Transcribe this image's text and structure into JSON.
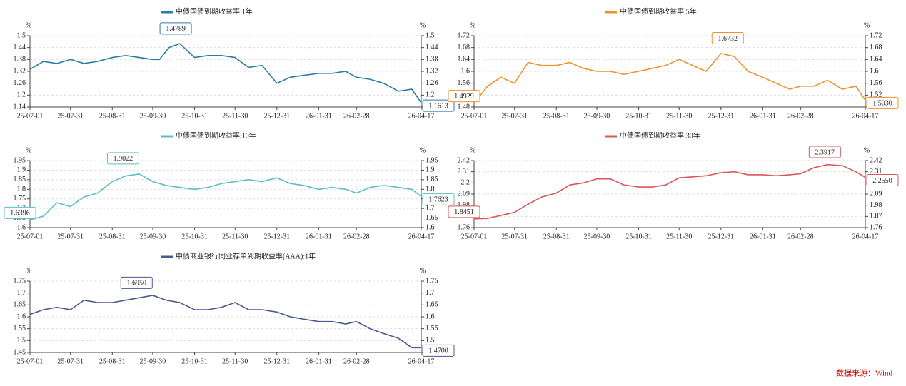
{
  "chart_data": [
    {
      "type": "line",
      "unit": "%",
      "series": [
        {
          "name": "中债国债到期收益率:1年",
          "color": "#2b7ca3",
          "values": [
            1.33,
            1.37,
            1.36,
            1.38,
            1.36,
            1.37,
            1.39,
            1.4,
            1.39,
            1.38,
            1.38,
            1.44,
            1.46,
            1.39,
            1.4,
            1.4,
            1.39,
            1.34,
            1.35,
            1.26,
            1.29,
            1.3,
            1.31,
            1.31,
            1.32,
            1.29,
            1.28,
            1.26,
            1.22,
            1.23,
            1.1613
          ]
        }
      ],
      "x": [
        "25-07-01",
        "25-07-11",
        "25-07-21",
        "25-07-31",
        "25-08-10",
        "25-08-20",
        "25-08-31",
        "25-09-10",
        "25-09-20",
        "25-09-30",
        "25-10-05",
        "25-10-12",
        "25-10-20",
        "25-10-31",
        "25-11-10",
        "25-11-20",
        "25-11-30",
        "25-12-10",
        "25-12-20",
        "25-12-31",
        "26-01-10",
        "26-01-20",
        "26-01-31",
        "26-02-10",
        "26-02-20",
        "26-02-28",
        "26-03-10",
        "26-03-20",
        "26-03-31",
        "26-04-10",
        "26-04-17"
      ],
      "xlim": [
        "25-07-01",
        "26-04-17"
      ],
      "xticks": [
        "25-07-01",
        "25-07-31",
        "25-08-31",
        "25-09-30",
        "25-10-31",
        "25-11-30",
        "25-12-31",
        "26-01-31",
        "26-02-28",
        "26-04-17"
      ],
      "ylim": [
        1.14,
        1.5
      ],
      "yticks": [
        1.14,
        1.2,
        1.26,
        1.32,
        1.38,
        1.44,
        1.5
      ],
      "grid": true,
      "annotations": [
        {
          "x": "25-10-17",
          "value": 1.4789,
          "label": "1.4789"
        },
        {
          "x": "26-04-17",
          "value": 1.1613,
          "label": "1.1613"
        }
      ]
    },
    {
      "type": "line",
      "unit": "%",
      "series": [
        {
          "name": "中债国债到期收益率:5年",
          "color": "#f0922b",
          "values": [
            1.4929,
            1.55,
            1.58,
            1.56,
            1.63,
            1.62,
            1.62,
            1.63,
            1.61,
            1.6,
            1.6,
            1.59,
            1.6,
            1.61,
            1.62,
            1.64,
            1.62,
            1.6,
            1.66,
            1.65,
            1.6,
            1.58,
            1.56,
            1.54,
            1.55,
            1.55,
            1.57,
            1.54,
            1.55,
            1.503
          ]
        }
      ],
      "x": [
        "25-07-01",
        "25-07-11",
        "25-07-21",
        "25-07-31",
        "25-08-10",
        "25-08-20",
        "25-08-31",
        "25-09-10",
        "25-09-20",
        "25-09-30",
        "25-10-10",
        "25-10-20",
        "25-10-31",
        "25-11-10",
        "25-11-20",
        "25-11-30",
        "25-12-10",
        "25-12-20",
        "25-12-31",
        "26-01-10",
        "26-01-20",
        "26-01-31",
        "26-02-10",
        "26-02-20",
        "26-02-28",
        "26-03-10",
        "26-03-20",
        "26-03-31",
        "26-04-10",
        "26-04-17"
      ],
      "xlim": [
        "25-07-01",
        "26-04-17"
      ],
      "xticks": [
        "25-07-01",
        "25-07-31",
        "25-08-31",
        "25-09-30",
        "25-10-31",
        "25-11-30",
        "25-12-31",
        "26-01-31",
        "26-02-28",
        "26-04-17"
      ],
      "ylim": [
        1.48,
        1.72
      ],
      "yticks": [
        1.48,
        1.52,
        1.56,
        1.6,
        1.64,
        1.68,
        1.72
      ],
      "grid": true,
      "annotations": [
        {
          "x": "25-07-01",
          "value": 1.4929,
          "label": "1.4929"
        },
        {
          "x": "26-01-05",
          "value": 1.6732,
          "label": "1.6732"
        },
        {
          "x": "26-04-17",
          "value": 1.503,
          "label": "1.5030"
        }
      ]
    },
    {
      "type": "line",
      "unit": "%",
      "series": [
        {
          "name": "中债国债到期收益率:10年",
          "color": "#5bbfc1",
          "values": [
            1.6396,
            1.66,
            1.73,
            1.71,
            1.76,
            1.78,
            1.84,
            1.87,
            1.88,
            1.84,
            1.82,
            1.81,
            1.8,
            1.81,
            1.83,
            1.84,
            1.85,
            1.84,
            1.86,
            1.83,
            1.82,
            1.8,
            1.81,
            1.8,
            1.78,
            1.81,
            1.82,
            1.81,
            1.8,
            1.7623
          ]
        }
      ],
      "x": [
        "25-07-01",
        "25-07-11",
        "25-07-21",
        "25-07-31",
        "25-08-10",
        "25-08-20",
        "25-08-31",
        "25-09-10",
        "25-09-20",
        "25-09-30",
        "25-10-10",
        "25-10-20",
        "25-10-31",
        "25-11-10",
        "25-11-20",
        "25-11-30",
        "25-12-10",
        "25-12-20",
        "25-12-31",
        "26-01-10",
        "26-01-20",
        "26-01-31",
        "26-02-10",
        "26-02-20",
        "26-02-28",
        "26-03-10",
        "26-03-20",
        "26-03-31",
        "26-04-10",
        "26-04-17"
      ],
      "xlim": [
        "25-07-01",
        "26-04-17"
      ],
      "xticks": [
        "25-07-01",
        "25-07-31",
        "25-08-31",
        "25-09-30",
        "25-10-31",
        "25-11-30",
        "25-12-31",
        "26-01-31",
        "26-02-28",
        "26-04-17"
      ],
      "ylim": [
        1.6,
        1.95
      ],
      "yticks": [
        1.6,
        1.65,
        1.7,
        1.75,
        1.8,
        1.85,
        1.9,
        1.95
      ],
      "grid": true,
      "annotations": [
        {
          "x": "25-07-01",
          "value": 1.6396,
          "label": "1.6396"
        },
        {
          "x": "25-09-08",
          "value": 1.9022,
          "label": "1.9022"
        },
        {
          "x": "26-04-17",
          "value": 1.7623,
          "label": "1.7623"
        }
      ]
    },
    {
      "type": "line",
      "unit": "%",
      "series": [
        {
          "name": "中债国债到期收益率:30年",
          "color": "#d9575b",
          "values": [
            1.8451,
            1.85,
            1.88,
            1.91,
            1.99,
            2.06,
            2.1,
            2.18,
            2.2,
            2.24,
            2.24,
            2.18,
            2.16,
            2.16,
            2.18,
            2.25,
            2.26,
            2.27,
            2.3,
            2.31,
            2.28,
            2.28,
            2.27,
            2.28,
            2.29,
            2.35,
            2.38,
            2.37,
            2.31,
            2.255
          ]
        }
      ],
      "x": [
        "25-07-01",
        "25-07-11",
        "25-07-21",
        "25-07-31",
        "25-08-10",
        "25-08-20",
        "25-08-31",
        "25-09-10",
        "25-09-20",
        "25-09-30",
        "25-10-10",
        "25-10-20",
        "25-10-31",
        "25-11-10",
        "25-11-20",
        "25-11-30",
        "25-12-10",
        "25-12-20",
        "25-12-31",
        "26-01-10",
        "26-01-20",
        "26-01-31",
        "26-02-10",
        "26-02-20",
        "26-02-28",
        "26-03-10",
        "26-03-20",
        "26-03-31",
        "26-04-10",
        "26-04-17"
      ],
      "xlim": [
        "25-07-01",
        "26-04-17"
      ],
      "xticks": [
        "25-07-01",
        "25-07-31",
        "25-08-31",
        "25-09-30",
        "25-10-31",
        "25-11-30",
        "25-12-31",
        "26-01-31",
        "26-02-28",
        "26-04-17"
      ],
      "ylim": [
        1.76,
        2.42
      ],
      "yticks": [
        1.76,
        1.87,
        1.98,
        2.09,
        2.2,
        2.31,
        2.42
      ],
      "grid": true,
      "annotations": [
        {
          "x": "25-07-01",
          "value": 1.8451,
          "label": "1.8451"
        },
        {
          "x": "26-03-18",
          "value": 2.3917,
          "label": "2.3917"
        },
        {
          "x": "26-04-17",
          "value": 2.255,
          "label": "2.2550"
        }
      ]
    },
    {
      "type": "line",
      "unit": "%",
      "series": [
        {
          "name": "中债商业银行同业存单到期收益率(AAA):1年",
          "color": "#4a5a8f",
          "values": [
            1.61,
            1.63,
            1.64,
            1.63,
            1.67,
            1.66,
            1.66,
            1.67,
            1.68,
            1.69,
            1.67,
            1.66,
            1.63,
            1.63,
            1.64,
            1.66,
            1.63,
            1.63,
            1.62,
            1.6,
            1.59,
            1.58,
            1.58,
            1.57,
            1.58,
            1.55,
            1.53,
            1.51,
            1.47,
            1.47
          ]
        }
      ],
      "x": [
        "25-07-01",
        "25-07-11",
        "25-07-21",
        "25-07-31",
        "25-08-10",
        "25-08-20",
        "25-08-31",
        "25-09-10",
        "25-09-20",
        "25-09-30",
        "25-10-10",
        "25-10-20",
        "25-10-31",
        "25-11-10",
        "25-11-20",
        "25-11-30",
        "25-12-10",
        "25-12-20",
        "25-12-31",
        "26-01-10",
        "26-01-20",
        "26-01-31",
        "26-02-10",
        "26-02-20",
        "26-02-28",
        "26-03-10",
        "26-03-20",
        "26-03-31",
        "26-04-10",
        "26-04-17"
      ],
      "xlim": [
        "25-07-01",
        "26-04-17"
      ],
      "xticks": [
        "25-07-01",
        "25-07-31",
        "25-08-31",
        "25-09-30",
        "25-10-31",
        "25-11-30",
        "25-12-31",
        "26-01-31",
        "26-02-28",
        "26-04-17"
      ],
      "ylim": [
        1.45,
        1.75
      ],
      "yticks": [
        1.45,
        1.5,
        1.55,
        1.6,
        1.65,
        1.7,
        1.75
      ],
      "grid": true,
      "annotations": [
        {
          "x": "25-09-18",
          "value": 1.695,
          "label": "1.6950"
        },
        {
          "x": "26-04-17",
          "value": 1.47,
          "label": "1.4700"
        }
      ]
    }
  ],
  "source": "数据来源：Wind"
}
